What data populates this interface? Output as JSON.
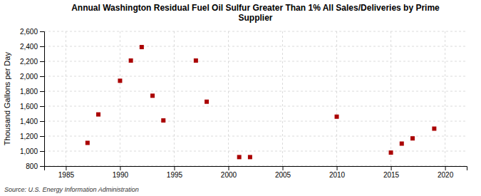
{
  "chart_data": {
    "type": "scatter",
    "title": "Annual Washington Residual Fuel Oil Sulfur Greater Than 1% All Sales/Deliveries by Prime\nSupplier",
    "ylabel": "Thousand Gallons per Day",
    "source": "Source: U.S. Energy Information Administration",
    "x": [
      1987,
      1988,
      1990,
      1991,
      1992,
      1993,
      1994,
      1997,
      1998,
      2001,
      2002,
      2010,
      2015,
      2016,
      2017,
      2019
    ],
    "values": [
      1110,
      1490,
      1940,
      2210,
      2390,
      1740,
      1410,
      2210,
      1660,
      920,
      920,
      1460,
      980,
      1100,
      1170,
      1300
    ],
    "color": "#aa0000",
    "marker": "square",
    "xlim": [
      1983,
      2022
    ],
    "ylim": [
      800,
      2600
    ],
    "xticks": [
      1985,
      1990,
      1995,
      2000,
      2005,
      2010,
      2015,
      2020
    ],
    "yticks": [
      800,
      {
        "value": 1000,
        "label": "1,000"
      },
      {
        "value": 1200,
        "label": "1,200"
      },
      {
        "value": 1400,
        "label": "1,400"
      },
      {
        "value": 1600,
        "label": "1,600"
      },
      {
        "value": 1800,
        "label": "1,800"
      },
      {
        "value": 2000,
        "label": "2,000"
      },
      {
        "value": 2200,
        "label": "2,200"
      },
      {
        "value": 2400,
        "label": "2,400"
      },
      {
        "value": 2600,
        "label": "2,600"
      }
    ],
    "grid": true
  }
}
